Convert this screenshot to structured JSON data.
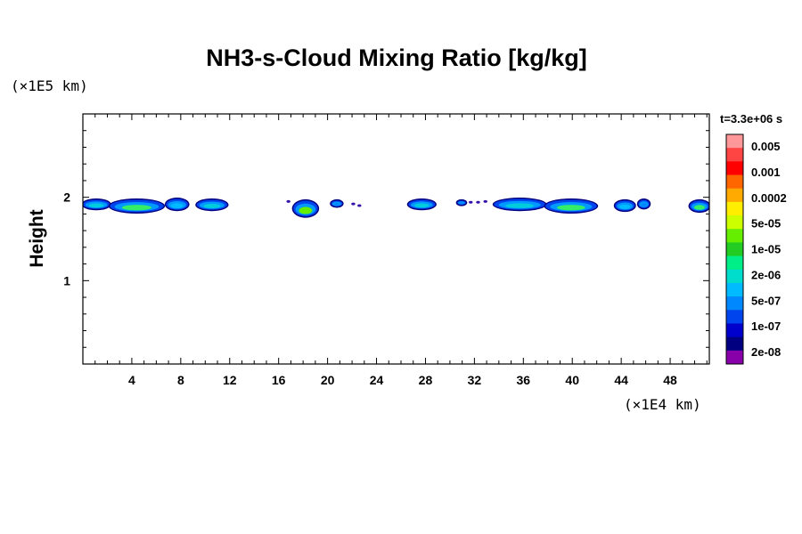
{
  "chart_data": {
    "type": "heatmap",
    "title": "NH3-s-Cloud Mixing Ratio [kg/kg]",
    "ylabel": "Height",
    "xlabel": "",
    "y_unit": "(×1E5 km)",
    "x_unit": "(×1E4 km)",
    "time_label": "t=3.3e+06 s",
    "xlim": [
      0,
      51.2
    ],
    "ylim": [
      0,
      3
    ],
    "x_ticks": [
      4,
      8,
      12,
      16,
      20,
      24,
      28,
      32,
      36,
      40,
      44,
      48
    ],
    "x_tick_labels": [
      "4",
      "8",
      "12",
      "16",
      "20",
      "24",
      "28",
      "32",
      "36",
      "40",
      "44",
      "48"
    ],
    "y_ticks": [
      1,
      2
    ],
    "y_tick_labels": [
      "1",
      "2"
    ],
    "colorbar": {
      "labels": [
        "0.005",
        "0.001",
        "0.0002",
        "5e-05",
        "1e-05",
        "2e-06",
        "5e-07",
        "1e-07",
        "2e-08"
      ],
      "colors_top_to_bottom": [
        "#ff9999",
        "#ff4444",
        "#ff0000",
        "#ff6600",
        "#ffaa00",
        "#ffee00",
        "#ccff00",
        "#66ee00",
        "#22cc22",
        "#00ee88",
        "#00ddcc",
        "#00bbff",
        "#0088ff",
        "#0044ee",
        "#0000cc",
        "#000080",
        "#8800aa"
      ]
    },
    "clouds": [
      {
        "x": [
          0.0,
          2.2
        ],
        "y": [
          1.86,
          1.97
        ],
        "core": "#00ccdd"
      },
      {
        "x": [
          2.2,
          6.6
        ],
        "y": [
          1.82,
          1.97
        ],
        "core": "#33ee66"
      },
      {
        "x": [
          6.8,
          8.6
        ],
        "y": [
          1.85,
          1.98
        ],
        "core": "#00bbff"
      },
      {
        "x": [
          9.3,
          11.8
        ],
        "y": [
          1.85,
          1.97
        ],
        "core": "#00ccdd"
      },
      {
        "x": [
          17.2,
          19.2
        ],
        "y": [
          1.77,
          1.96
        ],
        "core": "#66ee00"
      },
      {
        "x": [
          20.3,
          21.2
        ],
        "y": [
          1.89,
          1.96
        ],
        "core": "#0088ff"
      },
      {
        "x": [
          26.6,
          28.8
        ],
        "y": [
          1.86,
          1.97
        ],
        "core": "#00ccdd"
      },
      {
        "x": [
          30.6,
          31.3
        ],
        "y": [
          1.91,
          1.96
        ],
        "core": "#0088ff"
      },
      {
        "x": [
          33.6,
          37.8
        ],
        "y": [
          1.85,
          1.98
        ],
        "core": "#00ccdd"
      },
      {
        "x": [
          37.8,
          42.0
        ],
        "y": [
          1.82,
          1.97
        ],
        "core": "#33ee66"
      },
      {
        "x": [
          43.5,
          45.1
        ],
        "y": [
          1.84,
          1.96
        ],
        "core": "#00bbff"
      },
      {
        "x": [
          45.4,
          46.3
        ],
        "y": [
          1.87,
          1.97
        ],
        "core": "#0088ff"
      },
      {
        "x": [
          49.6,
          51.2
        ],
        "y": [
          1.83,
          1.96
        ],
        "core": "#33ee66"
      }
    ],
    "specks": [
      {
        "x": 16.8,
        "y": 1.95
      },
      {
        "x": 22.1,
        "y": 1.92
      },
      {
        "x": 22.6,
        "y": 1.9
      },
      {
        "x": 31.7,
        "y": 1.94
      },
      {
        "x": 32.3,
        "y": 1.94
      },
      {
        "x": 32.9,
        "y": 1.95
      }
    ]
  }
}
